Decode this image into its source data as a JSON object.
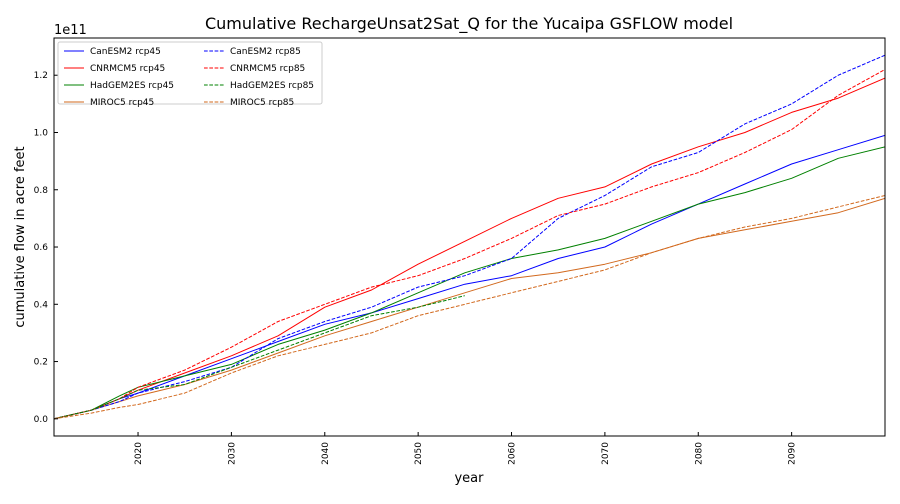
{
  "chart_data": {
    "type": "line",
    "title": "Cumulative RechargeUnsat2Sat_Q for the Yucaipa GSFLOW model",
    "xlabel": "year",
    "ylabel": "cumulative flow in acre feet",
    "y_offset_label": "1e11",
    "y_unit_scale": 100000000000.0,
    "xlim": [
      2011,
      2100
    ],
    "ylim": [
      -0.06,
      1.33
    ],
    "x_ticks": [
      2020,
      2030,
      2040,
      2050,
      2060,
      2070,
      2080,
      2090
    ],
    "y_ticks": [
      0.0,
      0.2,
      0.4,
      0.6,
      0.8,
      1.0,
      1.2
    ],
    "y_tick_labels": [
      "0.0",
      "0.2",
      "0.4",
      "0.6",
      "0.8",
      "1.0",
      "1.2"
    ],
    "grid": false,
    "legend_position": "top-left",
    "legend_columns": 2,
    "x": [
      2011,
      2015,
      2018,
      2020,
      2025,
      2030,
      2035,
      2040,
      2045,
      2050,
      2055,
      2060,
      2065,
      2070,
      2075,
      2080,
      2085,
      2090,
      2095,
      2100
    ],
    "series": [
      {
        "name": "CanESM2 rcp45",
        "color": "#0000ff",
        "dash": "solid",
        "values": [
          0.0,
          0.03,
          0.07,
          0.09,
          0.15,
          0.21,
          0.27,
          0.33,
          0.37,
          0.42,
          0.47,
          0.5,
          0.56,
          0.6,
          0.68,
          0.75,
          0.82,
          0.89,
          0.94,
          0.99
        ]
      },
      {
        "name": "CNRMCM5 rcp45",
        "color": "#ff0000",
        "dash": "solid",
        "values": [
          0.0,
          0.03,
          0.07,
          0.1,
          0.16,
          0.22,
          0.29,
          0.39,
          0.45,
          0.54,
          0.62,
          0.7,
          0.77,
          0.81,
          0.89,
          0.95,
          1.0,
          1.07,
          1.12,
          1.19
        ]
      },
      {
        "name": "HadGEM2ES rcp45",
        "color": "#008000",
        "dash": "solid",
        "values": [
          0.0,
          0.03,
          0.08,
          0.11,
          0.15,
          0.19,
          0.26,
          0.31,
          0.37,
          0.44,
          0.51,
          0.56,
          0.59,
          0.63,
          0.69,
          0.75,
          0.79,
          0.84,
          0.91,
          0.95
        ]
      },
      {
        "name": "MIROC5 rcp45",
        "color": "#d2691e",
        "dash": "solid",
        "values": [
          0.0,
          0.03,
          0.06,
          0.08,
          0.12,
          0.17,
          0.23,
          0.29,
          0.34,
          0.39,
          0.44,
          0.49,
          0.51,
          0.54,
          0.58,
          0.63,
          0.66,
          0.69,
          0.72,
          0.77
        ]
      },
      {
        "name": "CanESM2 rcp85",
        "color": "#0000ff",
        "dash": "dashed",
        "values": [
          0.0,
          0.03,
          0.06,
          0.09,
          0.13,
          0.18,
          0.28,
          0.34,
          0.39,
          0.46,
          0.5,
          0.56,
          0.7,
          0.78,
          0.88,
          0.93,
          1.03,
          1.1,
          1.2,
          1.27
        ]
      },
      {
        "name": "CNRMCM5 rcp85",
        "color": "#ff0000",
        "dash": "dashed",
        "values": [
          0.0,
          0.03,
          0.07,
          0.11,
          0.17,
          0.25,
          0.34,
          0.4,
          0.46,
          0.5,
          0.56,
          0.63,
          0.71,
          0.75,
          0.81,
          0.86,
          0.93,
          1.01,
          1.13,
          1.22
        ]
      },
      {
        "name": "HadGEM2ES rcp85",
        "color": "#008000",
        "dash": "dashed",
        "values": [
          0.0,
          0.03,
          0.07,
          0.1,
          0.12,
          0.18,
          0.24,
          0.3,
          0.36,
          0.39,
          0.43,
          null,
          null,
          null,
          null,
          null,
          null,
          null,
          null,
          null
        ]
      },
      {
        "name": "MIROC5 rcp85",
        "color": "#d2691e",
        "dash": "dashed",
        "values": [
          0.0,
          0.02,
          0.04,
          0.05,
          0.09,
          0.16,
          0.22,
          0.26,
          0.3,
          0.36,
          0.4,
          0.44,
          0.48,
          0.52,
          0.58,
          0.63,
          0.67,
          0.7,
          0.74,
          0.78
        ]
      }
    ]
  }
}
